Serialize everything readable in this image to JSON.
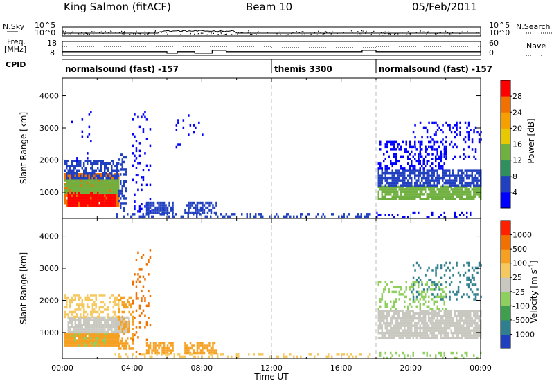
{
  "header": {
    "station": "King Salmon (fitACF)",
    "beam": "Beam 10",
    "date": "05/Feb/2011"
  },
  "summary": {
    "nsky_label": "N.Sky",
    "nsearch_label": "N.Search",
    "freq_label_1": "Freq.",
    "freq_label_2": "[MHz]",
    "nave_label": "Nave",
    "cpid_label": "CPID",
    "n_ticks_left": [
      "10^5",
      "10^0"
    ],
    "n_ticks_right": [
      "10^5",
      "10^0"
    ],
    "freq_ticks": [
      "18",
      "8"
    ],
    "nave_ticks": [
      "60",
      "0"
    ],
    "cpid_segments": [
      {
        "label": "normalsound (fast) -157",
        "start_h": 0,
        "end_h": 12
      },
      {
        "label": "themis 3300",
        "start_h": 12,
        "end_h": 18
      },
      {
        "label": "normalsound (fast) -157",
        "start_h": 18,
        "end_h": 24
      }
    ],
    "freq_steps": [
      {
        "t0": 0,
        "t1": 6.0,
        "f": 10.6
      },
      {
        "t0": 6.0,
        "t1": 6.6,
        "f": 9.6
      },
      {
        "t0": 6.6,
        "t1": 7.6,
        "f": 10.6
      },
      {
        "t0": 7.6,
        "t1": 8.6,
        "f": 9.6
      },
      {
        "t0": 8.6,
        "t1": 9.4,
        "f": 11.6
      },
      {
        "t0": 9.4,
        "t1": 17.2,
        "f": 10.6
      },
      {
        "t0": 17.2,
        "t1": 18.0,
        "f": 11.6
      },
      {
        "t0": 18.0,
        "t1": 24,
        "f": 10.6
      }
    ]
  },
  "chart_data": [
    {
      "type": "heatmap",
      "panel": "power",
      "ylabel": "Slant Range [km]",
      "xlabel": "Time UT",
      "xlim_hours": [
        0,
        24
      ],
      "ylim_km": [
        180,
        4550
      ],
      "x_ticks": [
        "00:00",
        "04:00",
        "08:00",
        "12:00",
        "16:00",
        "20:00",
        "00:00"
      ],
      "y_ticks": [
        1000,
        2000,
        3000,
        4000
      ],
      "colorbar": {
        "label": "Power [dB]",
        "ticks": [
          "4",
          "8",
          "12",
          "16",
          "20",
          "24",
          "28"
        ],
        "colors": [
          "#0000ff",
          "#2040c0",
          "#2f8f5f",
          "#70b040",
          "#e8c800",
          "#f5a000",
          "#f07000",
          "#ff0000"
        ]
      },
      "regions": [
        {
          "t0": 0.1,
          "t1": 3.2,
          "r0": 550,
          "r1": 1600,
          "level": 6,
          "density": 0.95
        },
        {
          "t0": 0.3,
          "t1": 3.0,
          "r0": 600,
          "r1": 1000,
          "level": 7,
          "density": 0.9
        },
        {
          "t0": 0.1,
          "t1": 3.2,
          "r0": 1000,
          "r1": 1400,
          "level": 3,
          "density": 0.9
        },
        {
          "t0": 0.1,
          "t1": 3.2,
          "r0": 1400,
          "r1": 2000,
          "level": 1,
          "density": 0.6
        },
        {
          "t0": 0.5,
          "t1": 2.0,
          "r0": 2000,
          "r1": 3600,
          "level": 0,
          "density": 0.05
        },
        {
          "t0": 3.2,
          "t1": 3.6,
          "r0": 400,
          "r1": 2200,
          "level": 1,
          "density": 0.5
        },
        {
          "t0": 4.0,
          "t1": 5.0,
          "r0": 300,
          "r1": 3600,
          "level": 0,
          "density": 0.12
        },
        {
          "t0": 4.8,
          "t1": 6.3,
          "r0": 350,
          "r1": 700,
          "level": 1,
          "density": 0.75
        },
        {
          "t0": 7.0,
          "t1": 8.8,
          "r0": 350,
          "r1": 700,
          "level": 1,
          "density": 0.6
        },
        {
          "t0": 6.5,
          "t1": 8.0,
          "r0": 2000,
          "r1": 3500,
          "level": 0,
          "density": 0.04
        },
        {
          "t0": 3.0,
          "t1": 18.0,
          "r0": 200,
          "r1": 350,
          "level": 1,
          "density": 0.3
        },
        {
          "t0": 18.1,
          "t1": 24,
          "r0": 800,
          "r1": 1200,
          "level": 3,
          "density": 0.85
        },
        {
          "t0": 18.1,
          "t1": 24,
          "r0": 1200,
          "r1": 1700,
          "level": 1,
          "density": 0.75
        },
        {
          "t0": 18.1,
          "t1": 22.0,
          "r0": 1700,
          "r1": 2600,
          "level": 0,
          "density": 0.35
        },
        {
          "t0": 20.0,
          "t1": 24,
          "r0": 2000,
          "r1": 3200,
          "level": 0,
          "density": 0.2
        },
        {
          "t0": 18.0,
          "t1": 24,
          "r0": 200,
          "r1": 400,
          "level": 0,
          "density": 0.2
        }
      ]
    },
    {
      "type": "heatmap",
      "panel": "velocity",
      "ylabel": "Slant Range [km]",
      "xlabel": "Time UT",
      "xlim_hours": [
        0,
        24
      ],
      "ylim_km": [
        180,
        4550
      ],
      "x_ticks": [
        "00:00",
        "04:00",
        "08:00",
        "12:00",
        "16:00",
        "20:00",
        "00:00"
      ],
      "y_ticks": [
        1000,
        2000,
        3000,
        4000
      ],
      "colorbar": {
        "label": "Velocity [m s^-1]",
        "ticks": [
          "1000",
          "500",
          "100",
          "25",
          "-25",
          "-100",
          "-500",
          "-1000"
        ],
        "colors": [
          "#1f3fbf",
          "#2f7f8f",
          "#3f9f4f",
          "#8fcf5f",
          "#c8c8c0",
          "#f5c860",
          "#f5a020",
          "#f07000",
          "#ff2000"
        ]
      },
      "regions": [
        {
          "t0": 0.1,
          "t1": 3.2,
          "r0": 550,
          "r1": 1000,
          "level": 6,
          "density": 0.95
        },
        {
          "t0": 0.5,
          "t1": 2.5,
          "r0": 600,
          "r1": 1000,
          "level": 3,
          "density": 0.2
        },
        {
          "t0": 0.3,
          "t1": 3.8,
          "r0": 1000,
          "r1": 1500,
          "level": 4,
          "density": 0.9
        },
        {
          "t0": 0.1,
          "t1": 3.2,
          "r0": 1500,
          "r1": 2200,
          "level": 5,
          "density": 0.45
        },
        {
          "t0": 3.2,
          "t1": 4.0,
          "r0": 500,
          "r1": 2200,
          "level": 6,
          "density": 0.4
        },
        {
          "t0": 4.0,
          "t1": 5.0,
          "r0": 300,
          "r1": 3600,
          "level": 7,
          "density": 0.12
        },
        {
          "t0": 4.8,
          "t1": 6.3,
          "r0": 350,
          "r1": 700,
          "level": 6,
          "density": 0.75
        },
        {
          "t0": 7.0,
          "t1": 8.8,
          "r0": 350,
          "r1": 700,
          "level": 6,
          "density": 0.6
        },
        {
          "t0": 3.0,
          "t1": 18.0,
          "r0": 200,
          "r1": 350,
          "level": 5,
          "density": 0.3
        },
        {
          "t0": 18.1,
          "t1": 24,
          "r0": 800,
          "r1": 1700,
          "level": 4,
          "density": 0.85
        },
        {
          "t0": 18.1,
          "t1": 22.0,
          "r0": 1700,
          "r1": 2600,
          "level": 3,
          "density": 0.3
        },
        {
          "t0": 20.0,
          "t1": 24,
          "r0": 2000,
          "r1": 3200,
          "level": 1,
          "density": 0.2
        },
        {
          "t0": 18.0,
          "t1": 24,
          "r0": 200,
          "r1": 400,
          "level": 3,
          "density": 0.2
        }
      ]
    }
  ]
}
